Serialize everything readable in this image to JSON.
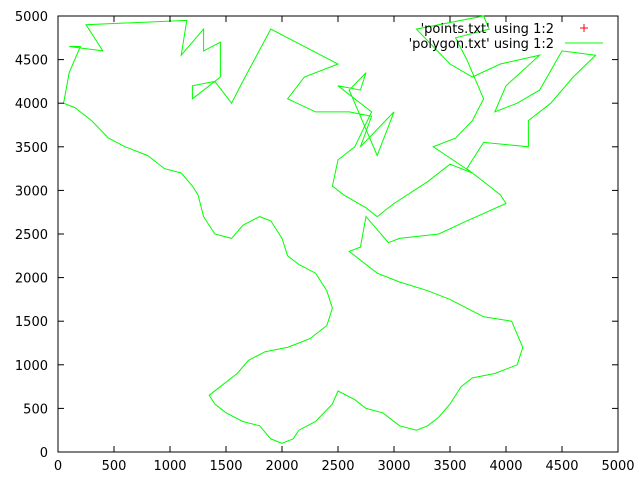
{
  "chart_data": {
    "type": "line",
    "title": "",
    "xlabel": "",
    "ylabel": "",
    "xlim": [
      0,
      5000
    ],
    "ylim": [
      0,
      5000
    ],
    "x_ticks": [
      0,
      500,
      1000,
      1500,
      2000,
      2500,
      3000,
      3500,
      4000,
      4500,
      5000
    ],
    "y_ticks": [
      0,
      500,
      1000,
      1500,
      2000,
      2500,
      3000,
      3500,
      4000,
      4500,
      5000
    ],
    "x_tick_labels": [
      "0",
      "500",
      "1000",
      "1500",
      "2000",
      "2500",
      "3000",
      "3500",
      "4000",
      "4500",
      "5000"
    ],
    "y_tick_labels": [
      "0",
      "500",
      "1000",
      "1500",
      "2000",
      "2500",
      "3000",
      "3500",
      "4000",
      "4500",
      "5000"
    ],
    "grid": false,
    "legend_position": "top-right",
    "legend": [
      "'points.txt' using 1:2",
      "'polygon.txt' using 1:2"
    ],
    "series": [
      {
        "name": "'points.txt' using 1:2",
        "color": "#ff0000",
        "marker": "plus",
        "points": []
      },
      {
        "name": "'polygon.txt' using 1:2",
        "color": "#00ff00",
        "marker": "none",
        "points": [
          [
            100,
            4650
          ],
          [
            400,
            4600
          ],
          [
            250,
            4900
          ],
          [
            1150,
            4950
          ],
          [
            1100,
            4550
          ],
          [
            1300,
            4850
          ],
          [
            1300,
            4600
          ],
          [
            1450,
            4700
          ],
          [
            1450,
            4300
          ],
          [
            1200,
            4050
          ],
          [
            1200,
            4200
          ],
          [
            1400,
            4250
          ],
          [
            1550,
            4000
          ],
          [
            1650,
            4250
          ],
          [
            1900,
            4850
          ],
          [
            2500,
            4450
          ],
          [
            2200,
            4300
          ],
          [
            2050,
            4050
          ],
          [
            2300,
            3900
          ],
          [
            2600,
            3900
          ],
          [
            2800,
            3850
          ],
          [
            2700,
            3500
          ],
          [
            3000,
            3900
          ],
          [
            2850,
            3400
          ],
          [
            2600,
            4150
          ],
          [
            2750,
            4350
          ],
          [
            2700,
            4150
          ],
          [
            2500,
            4200
          ],
          [
            2800,
            3900
          ],
          [
            2650,
            3500
          ],
          [
            2500,
            3350
          ],
          [
            2450,
            3050
          ],
          [
            2550,
            2950
          ],
          [
            2750,
            2800
          ],
          [
            2850,
            2700
          ],
          [
            3000,
            2850
          ],
          [
            3300,
            3100
          ],
          [
            3500,
            3300
          ],
          [
            3700,
            3200
          ],
          [
            3350,
            3500
          ],
          [
            3550,
            3600
          ],
          [
            3700,
            3800
          ],
          [
            3800,
            4050
          ],
          [
            3650,
            4500
          ],
          [
            3550,
            4750
          ],
          [
            3850,
            4850
          ],
          [
            3800,
            5000
          ],
          [
            3200,
            4850
          ],
          [
            3500,
            4450
          ],
          [
            3700,
            4300
          ],
          [
            3950,
            4450
          ],
          [
            4300,
            4550
          ],
          [
            4000,
            4200
          ],
          [
            3900,
            3900
          ],
          [
            4100,
            4000
          ],
          [
            4300,
            4150
          ],
          [
            4500,
            4600
          ],
          [
            4800,
            4550
          ],
          [
            4600,
            4300
          ],
          [
            4400,
            4000
          ],
          [
            4200,
            3800
          ],
          [
            4200,
            3500
          ],
          [
            3800,
            3550
          ],
          [
            3650,
            3250
          ],
          [
            3850,
            3050
          ],
          [
            3950,
            2950
          ],
          [
            4000,
            2850
          ],
          [
            3650,
            2650
          ],
          [
            3400,
            2500
          ],
          [
            3050,
            2450
          ],
          [
            2950,
            2400
          ],
          [
            2750,
            2700
          ],
          [
            2700,
            2350
          ],
          [
            2600,
            2300
          ],
          [
            2850,
            2050
          ],
          [
            3050,
            1950
          ],
          [
            3300,
            1850
          ],
          [
            3500,
            1750
          ],
          [
            3800,
            1550
          ],
          [
            4050,
            1500
          ],
          [
            4150,
            1200
          ],
          [
            4100,
            1000
          ],
          [
            3900,
            900
          ],
          [
            3700,
            850
          ],
          [
            3600,
            750
          ],
          [
            3500,
            550
          ],
          [
            3400,
            400
          ],
          [
            3300,
            300
          ],
          [
            3200,
            250
          ],
          [
            3050,
            300
          ],
          [
            2900,
            450
          ],
          [
            2750,
            500
          ],
          [
            2650,
            600
          ],
          [
            2500,
            700
          ],
          [
            2450,
            550
          ],
          [
            2300,
            350
          ],
          [
            2150,
            250
          ],
          [
            2100,
            150
          ],
          [
            2000,
            100
          ],
          [
            1900,
            150
          ],
          [
            1800,
            300
          ],
          [
            1650,
            350
          ],
          [
            1500,
            450
          ],
          [
            1400,
            550
          ],
          [
            1350,
            650
          ],
          [
            1500,
            800
          ],
          [
            1600,
            900
          ],
          [
            1700,
            1050
          ],
          [
            1850,
            1150
          ],
          [
            2050,
            1200
          ],
          [
            2150,
            1250
          ],
          [
            2250,
            1300
          ],
          [
            2400,
            1450
          ],
          [
            2450,
            1650
          ],
          [
            2400,
            1850
          ],
          [
            2300,
            2050
          ],
          [
            2150,
            2150
          ],
          [
            2050,
            2250
          ],
          [
            2000,
            2450
          ],
          [
            1900,
            2650
          ],
          [
            1800,
            2700
          ],
          [
            1650,
            2600
          ],
          [
            1550,
            2450
          ],
          [
            1400,
            2500
          ],
          [
            1300,
            2700
          ],
          [
            1250,
            2950
          ],
          [
            1200,
            3050
          ],
          [
            1100,
            3200
          ],
          [
            950,
            3250
          ],
          [
            800,
            3400
          ],
          [
            600,
            3500
          ],
          [
            450,
            3600
          ],
          [
            300,
            3800
          ],
          [
            150,
            3950
          ],
          [
            50,
            4000
          ],
          [
            100,
            4350
          ],
          [
            200,
            4650
          ]
        ]
      }
    ]
  }
}
